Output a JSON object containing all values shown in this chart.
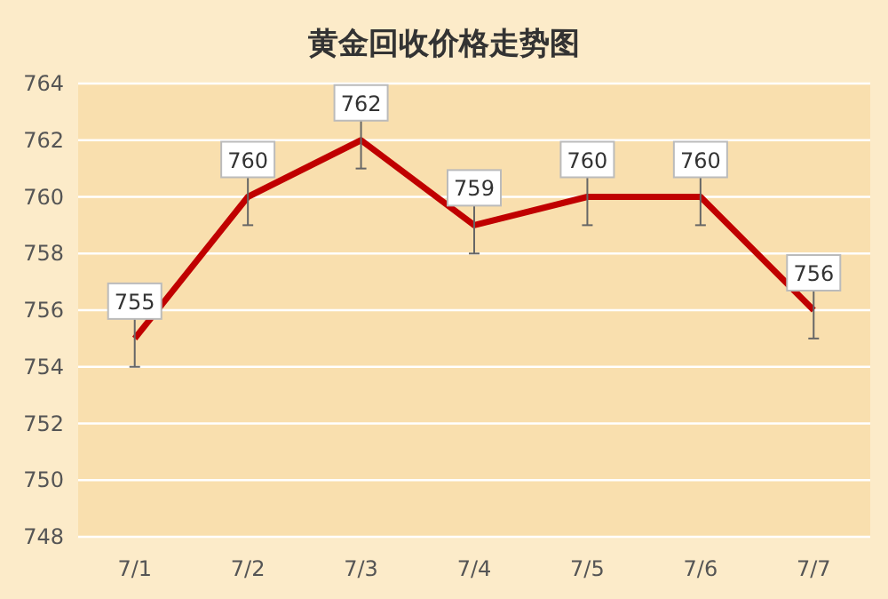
{
  "chart_data": {
    "type": "line",
    "title": "黄金回收价格走势图",
    "categories": [
      "7/1",
      "7/2",
      "7/3",
      "7/4",
      "7/5",
      "7/6",
      "7/7"
    ],
    "values": [
      755,
      760,
      762,
      759,
      760,
      760,
      756
    ],
    "errors": [
      1,
      1,
      1,
      1,
      1,
      1,
      1
    ],
    "color": "#c00000",
    "ylim": [
      748,
      764
    ],
    "yticks": [
      748,
      750,
      752,
      754,
      756,
      758,
      760,
      762,
      764
    ],
    "grid": "y",
    "data_labels": true
  }
}
